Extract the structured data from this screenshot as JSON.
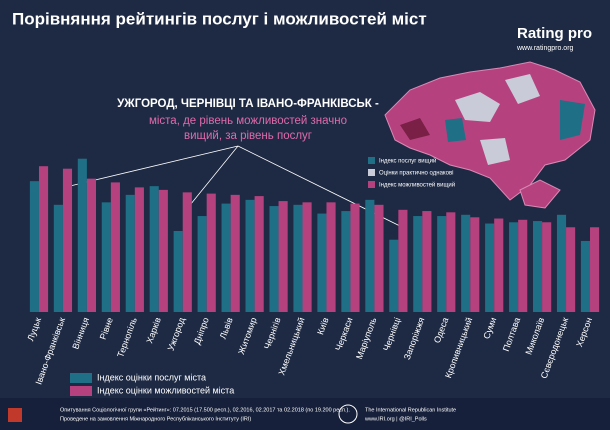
{
  "chart_data": {
    "type": "bar",
    "title": "Порівняння рейтингів послуг і можливостей міст",
    "annotation": {
      "heading": "УЖГОРОД, ЧЕРНІВЦІ ТА ІВАНО-ФРАНКІВСЬК -",
      "line1": "міста, де рівень можливостей значно",
      "line2": "вищий, за рівень послуг"
    },
    "categories": [
      "Луцьк",
      "Івано-Франківськ",
      "Вінниця",
      "Рівне",
      "Тернопіль",
      "Харків",
      "Ужгород",
      "Дніпро",
      "Львів",
      "Житомир",
      "Чернігів",
      "Хмельницький",
      "Київ",
      "Черкаси",
      "Маріуполь",
      "Чернівці",
      "Запоріжжя",
      "Одеса",
      "Кропивницький",
      "Суми",
      "Полтава",
      "Миколаїв",
      "Сєвєродонецьк",
      "Херсон"
    ],
    "series": [
      {
        "name": "Індекс оцінки послуг міста",
        "color": "#1f6f86",
        "values": [
          105,
          86,
          123,
          88,
          94,
          101,
          65,
          77,
          87,
          90,
          85,
          86,
          79,
          81,
          90,
          58,
          77,
          77,
          78,
          71,
          72,
          73,
          78,
          57
        ]
      },
      {
        "name": "Індекс оцінки можливостей міста",
        "color": "#b5427f",
        "values": [
          117,
          115,
          107,
          104,
          100,
          98,
          96,
          95,
          94,
          93,
          89,
          88,
          88,
          87,
          86,
          82,
          81,
          80,
          76,
          75,
          74,
          72,
          68,
          68
        ]
      }
    ],
    "ylim": [
      0,
      130
    ],
    "grid": false,
    "legend": "bottom-left"
  },
  "logo": {
    "name": "Rating pro",
    "url": "www.ratingpro.org"
  },
  "map_legend": [
    "Індекс послуг вищий",
    "Оцінки практично однакові",
    "Індекс можливостей вищий"
  ],
  "footer": {
    "survey": "Опитування Соціологічної групи «Рейтинг»: 07.2015 (17.500 респ.), 02.2016, 02.2017 та 02.2018 (по 19.200 респ.).",
    "sponsor": "Проведене на замовлення Міжнародного Республіканського Інституту (IRI)",
    "iri": "The International Republican Institute",
    "iri_links": "www.IRI.org | @IRI_Polls"
  }
}
